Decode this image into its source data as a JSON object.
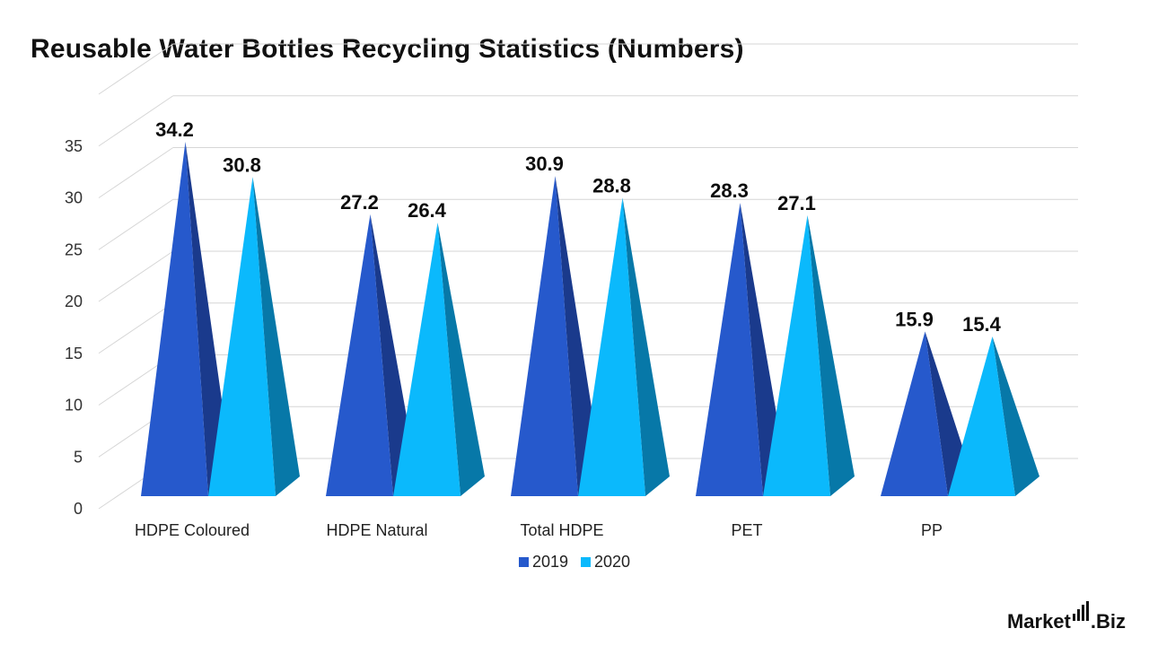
{
  "chart_data": {
    "type": "bar",
    "title": "Reusable Water Bottles Recycling Statistics (Numbers)",
    "categories": [
      "HDPE Coloured",
      "HDPE Natural",
      "Total HDPE",
      "PET",
      "PP"
    ],
    "series": [
      {
        "name": "2019",
        "values": [
          34.2,
          27.2,
          30.9,
          28.3,
          15.9
        ],
        "color": "#2659CC",
        "shade": "#1A3A8C"
      },
      {
        "name": "2020",
        "values": [
          30.8,
          26.4,
          28.8,
          27.1,
          15.4
        ],
        "color": "#0BB9FC",
        "shade": "#0778A8"
      }
    ],
    "y_ticks": [
      "0",
      "5",
      "10",
      "15",
      "20",
      "25",
      "30",
      "35"
    ],
    "ylim": [
      0,
      40
    ],
    "grid": true,
    "legend_position": "bottom",
    "mark_shape": "pyramid"
  },
  "brand": {
    "name": "Market",
    "suffix": ".Biz"
  }
}
